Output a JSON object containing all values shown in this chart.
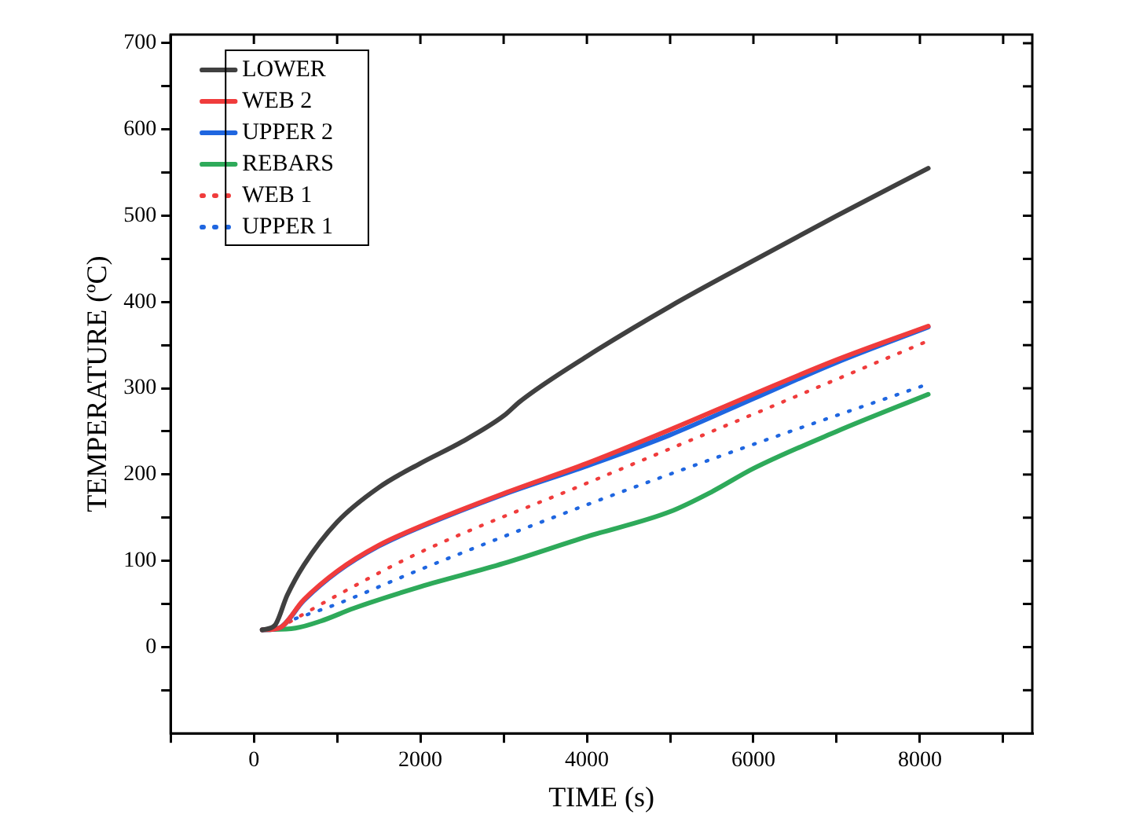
{
  "chart_data": {
    "type": "line",
    "xlabel": "TIME (s)",
    "ylabel": "TEMPERATURE (ºC)",
    "xlim": [
      -1000,
      9350
    ],
    "ylim": [
      -100,
      710
    ],
    "xticks": [
      {
        "value": -1000,
        "label": null
      },
      0,
      {
        "value": 1000,
        "label": null
      },
      2000,
      {
        "value": 3000,
        "label": null
      },
      4000,
      {
        "value": 5000,
        "label": null
      },
      6000,
      {
        "value": 7000,
        "label": null
      },
      8000,
      {
        "value": 9000,
        "label": null
      }
    ],
    "yticks": [
      {
        "value": -50,
        "label": null
      },
      0,
      {
        "value": 50,
        "label": null
      },
      100,
      {
        "value": 150,
        "label": null
      },
      200,
      {
        "value": 250,
        "label": null
      },
      300,
      {
        "value": 350,
        "label": null
      },
      400,
      {
        "value": 450,
        "label": null
      },
      500,
      {
        "value": 550,
        "label": null
      },
      600,
      {
        "value": 650,
        "label": null
      },
      700
    ],
    "grid": false,
    "legend": "top left",
    "marker": "none",
    "series": [
      {
        "name": "LOWER",
        "color": "#404040",
        "line_style": "solid",
        "x": [
          100,
          250,
          400,
          600,
          1000,
          1500,
          2000,
          2500,
          3000,
          3200,
          4000,
          5000,
          6000,
          7000,
          8100
        ],
        "values": [
          20,
          25,
          60,
          95,
          145,
          185,
          213,
          238,
          268,
          285,
          337,
          395,
          448,
          500,
          555
        ]
      },
      {
        "name": "WEB 2",
        "color": "#f03c3c",
        "line_style": "solid",
        "x": [
          100,
          300,
          600,
          1000,
          1500,
          2000,
          3000,
          4000,
          5000,
          6000,
          7000,
          8100
        ],
        "values": [
          20,
          22,
          55,
          88,
          118,
          140,
          178,
          213,
          252,
          293,
          333,
          372
        ]
      },
      {
        "name": "UPPER 2",
        "color": "#1f66e0",
        "line_style": "solid",
        "x": [
          100,
          300,
          600,
          1000,
          1500,
          2000,
          3000,
          4000,
          5000,
          6000,
          7000,
          8100
        ],
        "values": [
          20,
          22,
          54,
          87,
          117,
          139,
          177,
          210,
          246,
          288,
          330,
          371
        ]
      },
      {
        "name": "REBARS",
        "color": "#2eaa5a",
        "line_style": "solid",
        "x": [
          100,
          500,
          800,
          1200,
          2000,
          3000,
          4000,
          5000,
          5500,
          6000,
          7000,
          8100
        ],
        "values": [
          20,
          22,
          30,
          45,
          70,
          97,
          128,
          157,
          180,
          207,
          250,
          293
        ]
      },
      {
        "name": "WEB 1",
        "color": "#f03c3c",
        "line_style": "dotted",
        "x": [
          300,
          1000,
          2000,
          4000,
          6000,
          8100
        ],
        "values": [
          22,
          60,
          110,
          190,
          270,
          355
        ]
      },
      {
        "name": "UPPER 1",
        "color": "#1f66e0",
        "line_style": "dotted",
        "x": [
          500,
          1000,
          2000,
          4000,
          6000,
          8100
        ],
        "values": [
          33,
          50,
          90,
          165,
          235,
          305
        ]
      }
    ]
  }
}
